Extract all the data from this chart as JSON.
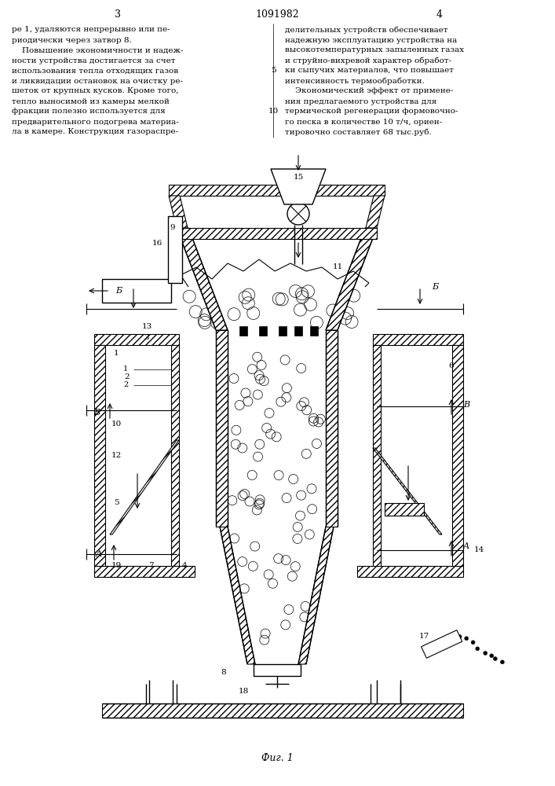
{
  "page_number_left": "3",
  "page_number_center": "1091982",
  "page_number_right": "4",
  "text_left": [
    "ре 1, удаляются непрерывно или пе-",
    "риодически через затвор 8.",
    "    Повышение экономичности и надеж-",
    "ности устройства достигается за счет",
    "использования тепла отходящих газов",
    "и ликвидации остановок на очистку ре-",
    "шеток от крупных кусков. Кроме того,",
    "тепло выносимой из камеры мелкой",
    "фракции полезно используется для",
    "предварительного подогрева материа-",
    "ла в камере. Конструкция газораспре-"
  ],
  "text_right": [
    "делительных устройств обеспечивает",
    "надежную эксплуатацию устройства на",
    "высокотемпературных запыленных газах",
    "и струйно-вихревой характер обработ-",
    "ки сыпучих материалов, что повышает",
    "интенсивность термообработки.",
    "    Экономический эффект от примене-",
    "ния предлагаемого устройства для",
    "термической регенерации формовочно-",
    "го песка в количестве 10 т/ч, ориен-",
    "тировочно составляет 68 тыс.руб."
  ],
  "line_number": "5",
  "line_number2": "10",
  "fig_label": "Фиг. 1",
  "bg_color": "#ffffff",
  "line_color": "#000000",
  "hatch_color": "#000000",
  "text_color": "#000000"
}
